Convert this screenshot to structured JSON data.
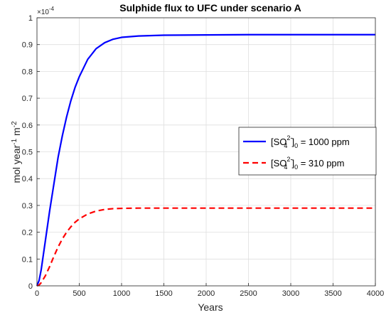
{
  "chart_data": {
    "type": "line",
    "title": "Sulphide flux to UFC under scenario A",
    "xlabel": "Years",
    "ylabel": "mol year⁻¹ m⁻²",
    "ylabel_parts": {
      "a": "mol year",
      "a_sup": "-1",
      "b": " m",
      "b_sup": "-2"
    },
    "y_exponent_label": "×10",
    "y_exponent_power": "-4",
    "xlim": [
      0,
      4000
    ],
    "ylim": [
      0,
      1
    ],
    "xticks": [
      0,
      500,
      1000,
      1500,
      2000,
      2500,
      3000,
      3500,
      4000
    ],
    "yticks": [
      0,
      0.1,
      0.2,
      0.3,
      0.4,
      0.5,
      0.6,
      0.7,
      0.8,
      0.9,
      1
    ],
    "ytick_labels": [
      "0",
      "0.1",
      "0.2",
      "0.3",
      "0.4",
      "0.5",
      "0.6",
      "0.7",
      "0.8",
      "0.9",
      "1"
    ],
    "grid": true,
    "legend_position": "right-middle",
    "series": [
      {
        "name": "[SO4 2-]0 = 1000 ppm",
        "legend": {
          "open": "[SO",
          "sup": "2-",
          "sub": "4",
          "close": "]",
          "sub0": "0",
          "rest": " = 1000 ppm"
        },
        "color": "#0000ff",
        "style": "solid",
        "x": [
          0,
          25,
          50,
          100,
          150,
          200,
          250,
          300,
          350,
          400,
          450,
          500,
          600,
          700,
          800,
          900,
          1000,
          1200,
          1500,
          2000,
          2500,
          3000,
          3500,
          4000
        ],
        "y": [
          0,
          0.02,
          0.06,
          0.17,
          0.28,
          0.38,
          0.48,
          0.56,
          0.63,
          0.69,
          0.74,
          0.78,
          0.845,
          0.885,
          0.907,
          0.92,
          0.927,
          0.932,
          0.935,
          0.936,
          0.937,
          0.937,
          0.937,
          0.937
        ]
      },
      {
        "name": "[SO4 2-]0 = 310 ppm",
        "legend": {
          "open": "[SO",
          "sup": "2-",
          "sub": "4",
          "close": "]",
          "sub0": "0",
          "rest": " = 310 ppm"
        },
        "color": "#ff0000",
        "style": "dashed",
        "x": [
          0,
          25,
          50,
          100,
          150,
          200,
          250,
          300,
          350,
          400,
          450,
          500,
          600,
          700,
          800,
          900,
          1000,
          1200,
          1500,
          2000,
          2500,
          3000,
          3500,
          4000
        ],
        "y": [
          0,
          0.003,
          0.012,
          0.038,
          0.072,
          0.11,
          0.145,
          0.175,
          0.2,
          0.22,
          0.237,
          0.25,
          0.268,
          0.279,
          0.285,
          0.288,
          0.289,
          0.29,
          0.29,
          0.29,
          0.29,
          0.29,
          0.29,
          0.29
        ]
      }
    ]
  },
  "style": {
    "grid_color": "#dfdfdf",
    "axis_color": "#262626",
    "background": "#ffffff"
  }
}
